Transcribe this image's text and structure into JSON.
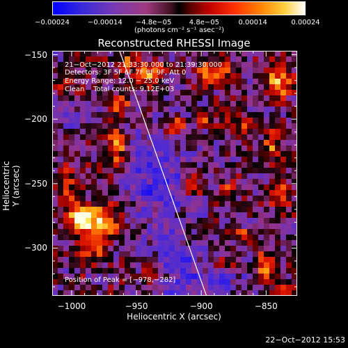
{
  "chart_data": {
    "type": "heatmap",
    "title": "Reconstructed RHESSI Image",
    "xlabel": "Heliocentric X (arcsec)",
    "ylabel": "Heliocentric Y (arcsec)",
    "xlim": [
      -1015,
      -826
    ],
    "ylim": [
      -337,
      -147
    ],
    "x_ticks": [
      "−1000",
      "−950",
      "−900",
      "−850"
    ],
    "x_tick_values": [
      -1000,
      -950,
      -900,
      -850
    ],
    "y_ticks": [
      "−150",
      "−200",
      "−250",
      "−300"
    ],
    "y_tick_values": [
      -150,
      -200,
      -250,
      -300
    ],
    "colorbar": {
      "colors": [
        "#0000ff",
        "#6633cc",
        "#a040a0",
        "#b03040",
        "#000000",
        "#c00000",
        "#ff4000",
        "#ffa000",
        "#ffff80",
        "#ffffff"
      ],
      "tick_labels": [
        "−0.00024",
        "−0.00014",
        "−4.8e−05",
        "4.8e−05",
        "0.00014",
        "0.00024"
      ],
      "tick_values": [
        -0.00024,
        -0.00014,
        -4.8e-05,
        4.8e-05,
        0.00014,
        0.00024
      ],
      "vmin": -0.00024,
      "vmax": 0.00024,
      "units": "(photons cm⁻² s⁻¹ asec⁻²)"
    },
    "annotations": [
      "21−Oct−2012 21:33:30.000 to 21:39:30.000",
      "Detectors: 3F 5F 6F 7F 8F 9F, Att 0",
      "Energy Range: 12.0 − 25.0 keV",
      "Clean    Total counts: 9.12E+03"
    ],
    "peak_label": "Position of Peak = [−978,−282]",
    "peak": [
      -978,
      -282
    ],
    "limb_line": [
      [
        -963,
        -147
      ],
      [
        -896,
        -337
      ]
    ]
  },
  "footer": "22−Oct−2012 15:53"
}
